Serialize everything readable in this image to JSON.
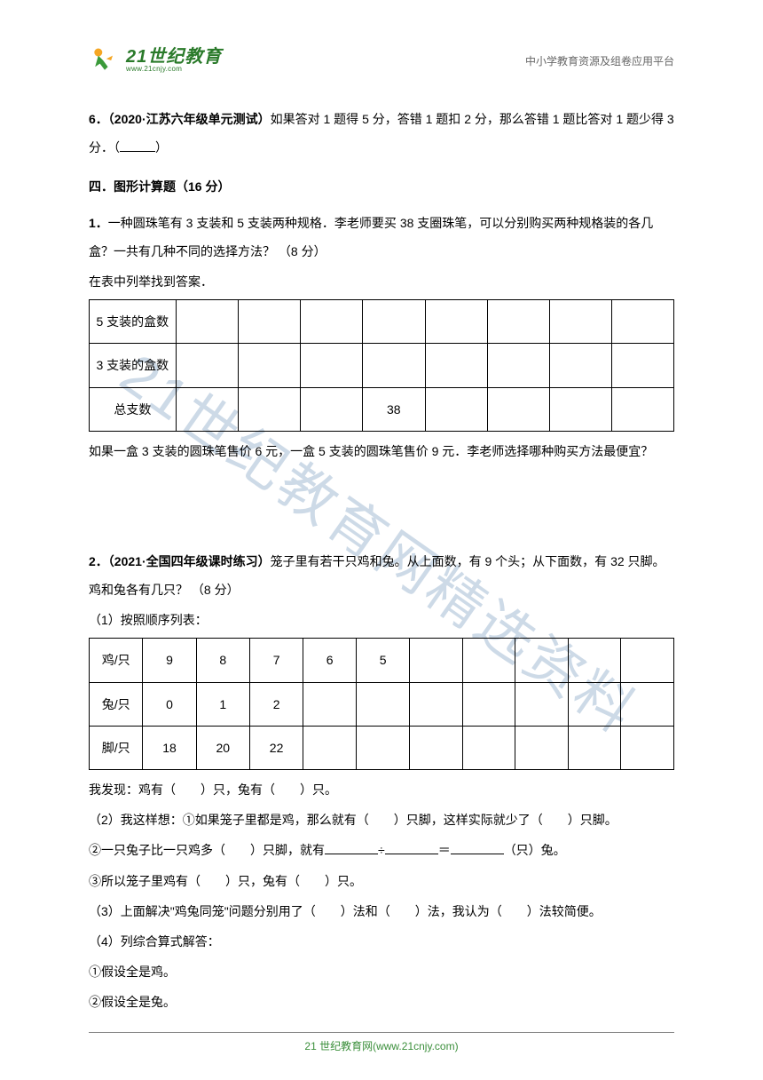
{
  "header": {
    "logo_main": "21世纪教育",
    "logo_sub": "www.21cnjy.com",
    "right_text": "中小学教育资源及组卷应用平台"
  },
  "watermark": "21世纪教育网精选资料",
  "q6": {
    "num": "6．",
    "source": "（2020·江苏六年级单元测试）",
    "text_a": "如果答对 1 题得 5 分，答错 1 题扣 2 分，那么答错 1 题比答对 1 题少得 3 分．（",
    "text_b": "）"
  },
  "section4": {
    "title": "四．图形计算题（16 分）"
  },
  "q4_1": {
    "num": "1．",
    "text1": "一种圆珠笔有 3 支装和 5 支装两种规格．李老师要买 38 支圈珠笔，可以分别购买两种规格装的各几盒？一共有几种不同的选择方法？  （8 分）",
    "text2": "在表中列举找到答案．",
    "table": {
      "rows": [
        [
          "5 支装的盒数",
          "",
          "",
          "",
          "",
          "",
          "",
          "",
          ""
        ],
        [
          "3 支装的盒数",
          "",
          "",
          "",
          "",
          "",
          "",
          "",
          ""
        ],
        [
          "总支数",
          "",
          "",
          "",
          "38",
          "",
          "",
          "",
          ""
        ]
      ],
      "col_count": 9
    },
    "text3": "如果一盒 3 支装的圆珠笔售价 6 元，一盒 5 支装的圆珠笔售价 9 元．李老师选择哪种购买方法最便宜？"
  },
  "q4_2": {
    "num": "2．",
    "source": "（2021·全国四年级课时练习）",
    "text1": "笼子里有若干只鸡和兔。从上面数，有 9 个头；从下面数，有 32 只脚。鸡和兔各有几只？  （8 分）",
    "sub1_label": "（1）按照顺序列表：",
    "table": {
      "rows": [
        [
          "鸡/只",
          "9",
          "8",
          "7",
          "6",
          "5",
          "",
          "",
          "",
          "",
          ""
        ],
        [
          "兔/只",
          "0",
          "1",
          "2",
          "",
          "",
          "",
          "",
          "",
          "",
          ""
        ],
        [
          "脚/只",
          "18",
          "20",
          "22",
          "",
          "",
          "",
          "",
          "",
          "",
          ""
        ]
      ],
      "col_count": 11
    },
    "found": "我发现：鸡有（　　）只，兔有（　　）只。",
    "sub2_1": "（2）我这样想：①如果笼子里都是鸡，那么就有（　　）只脚，这样实际就少了（　　）只脚。",
    "sub2_2a": "②一只兔子比一只鸡多（　　）只脚，就有",
    "sub2_2b": "÷",
    "sub2_2c": "＝",
    "sub2_2d": "（只）兔。",
    "sub2_3": "③所以笼子里鸡有（　　）只，兔有（　　）只。",
    "sub3": "（3）上面解决\"鸡兔同笼\"问题分别用了（　　）法和（　　）法，我认为（　　）法较简便。",
    "sub4": "（4）列综合算式解答：",
    "sub4_1": "①假设全是鸡。",
    "sub4_2": "②假设全是兔。"
  },
  "footer": {
    "text": "21 世纪教育网(www.21cnjy.com)"
  },
  "colors": {
    "text": "#000000",
    "header_gray": "#666666",
    "green": "#2a7a2a",
    "footer_green": "#3b8f3b",
    "watermark": "rgba(100,140,180,0.32)",
    "background": "#ffffff"
  }
}
